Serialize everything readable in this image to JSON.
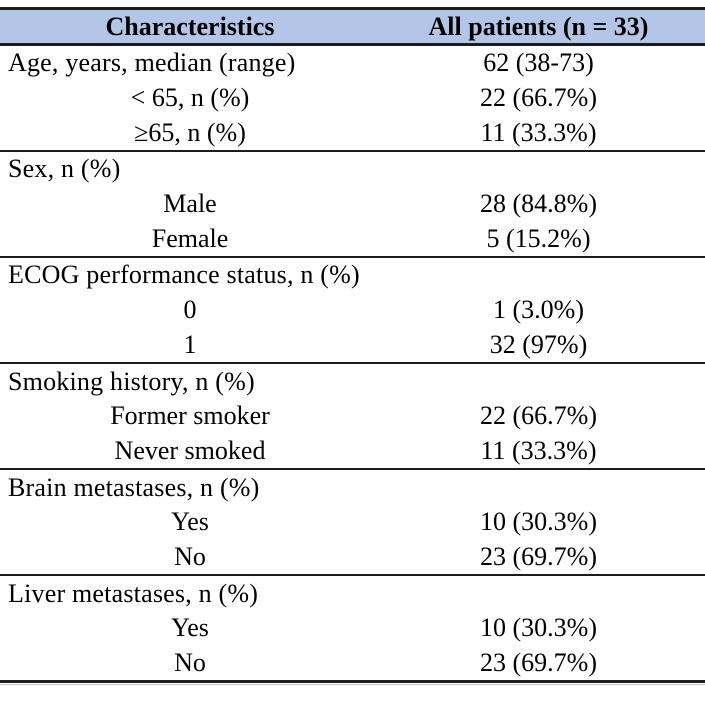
{
  "table": {
    "headers": [
      "Characteristics",
      "All patients (n = 33)"
    ],
    "sections": [
      {
        "category": "Age, years, median (range)",
        "category_value": "62 (38-73)",
        "rows": [
          {
            "label": "< 65, n (%)",
            "value": "22 (66.7%)"
          },
          {
            "label": "≥65, n (%)",
            "value": "11 (33.3%)"
          }
        ]
      },
      {
        "category": "Sex, n (%)",
        "category_value": "",
        "rows": [
          {
            "label": "Male",
            "value": "28 (84.8%)"
          },
          {
            "label": "Female",
            "value": "5 (15.2%)"
          }
        ]
      },
      {
        "category": "ECOG performance status, n (%)",
        "category_value": "",
        "rows": [
          {
            "label": "0",
            "value": "1 (3.0%)"
          },
          {
            "label": "1",
            "value": "32 (97%)"
          }
        ]
      },
      {
        "category": "Smoking history, n (%)",
        "category_value": "",
        "rows": [
          {
            "label": "Former smoker",
            "value": "22 (66.7%)"
          },
          {
            "label": "Never smoked",
            "value": "11 (33.3%)"
          }
        ]
      },
      {
        "category": "Brain metastases, n (%)",
        "category_value": "",
        "rows": [
          {
            "label": "Yes",
            "value": "10 (30.3%)"
          },
          {
            "label": "No",
            "value": "23 (69.7%)"
          }
        ]
      },
      {
        "category": "Liver metastases, n (%)",
        "category_value": "",
        "rows": [
          {
            "label": "Yes",
            "value": "10 (30.3%)"
          },
          {
            "label": "No",
            "value": "23 (69.7%)"
          }
        ]
      }
    ],
    "colors": {
      "header_bg": "#b4c6e7",
      "border": "#1c1c1c",
      "text": "#000000"
    }
  }
}
